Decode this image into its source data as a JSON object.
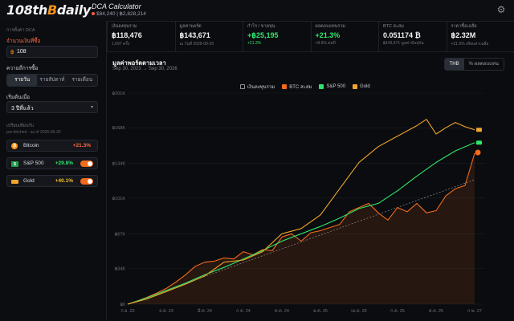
{
  "header": {
    "logo_pre": "108th",
    "logo_b": "B",
    "logo_post": "daily",
    "app_title": "DCA Calculator",
    "price_text": "$84,240 | ฿2,828,214"
  },
  "stats": [
    {
      "label": "เงินลงทุนรวม",
      "value": "฿118,476",
      "sub": "1,097 ครั้ง",
      "green": false
    },
    {
      "label": "มูลค่าพอร์ต",
      "value": "฿143,671",
      "sub": "ณ วันที่ 2026-09-29",
      "green": false
    },
    {
      "label": "กำไร / ขาดทุน",
      "value": "+฿25,195",
      "sub": "+21.3%",
      "green": true
    },
    {
      "label": "ผลตอบแทนรวม",
      "value": "+21.3%",
      "sub": "+8.6% ต่อปี",
      "green": true
    },
    {
      "label": "BTC สะสม",
      "value": "0.051174 ₿",
      "sub": "฿143,671 มูลค่าปัจจุบัน",
      "green": false
    },
    {
      "label": "ราคาซื้อเฉลี่ย",
      "value": "฿2.32M",
      "sub": "+21.5% เทียบค่าเฉลี่ย",
      "green": false
    }
  ],
  "sidebar": {
    "section_title": "การตั้งค่า DCA",
    "amount_label": "จำนวนเงินที่ซื้อ",
    "amount_currency": "฿",
    "amount_value": "108",
    "frequency_label": "ความถี่การซื้อ",
    "frequency_options": [
      "รายวัน",
      "รายสัปดาห์",
      "รายเดือน"
    ],
    "start_label": "เริ่มต้นเมื่อ",
    "start_value": "3 ปีที่แล้ว",
    "compare_title": "เปรียบเทียบกับ",
    "compare_note": "pre-fetched · as of 2026-09-30",
    "assets": [
      {
        "name": "Bitcoin",
        "pct": "+21.3%",
        "color": "#f7931a",
        "icon": "bitcoin-icon",
        "glyph": "₿",
        "toggle": false
      },
      {
        "name": "S&P 500",
        "pct": "+29.8%",
        "color": "#2ee66b",
        "icon": "dollar-icon",
        "glyph": "$",
        "toggle": true
      },
      {
        "name": "Gold",
        "pct": "+40.1%",
        "color": "#f0a52a",
        "icon": "gold-bar-icon",
        "glyph": "",
        "toggle": true
      }
    ]
  },
  "chart_panel": {
    "title": "มูลค่าพอร์ตตามเวลา",
    "subtitle": "Sep 30, 2023 → Sep 30, 2026",
    "currency_options": [
      "THB",
      "% ผลตอบแทน"
    ],
    "legend": [
      {
        "label": "เงินลงทุนรวม",
        "color": "#8a8f99",
        "icon": "invested-legend-icon"
      },
      {
        "label": "BTC สะสม",
        "color": "#f26a1b",
        "icon": "btc-legend-icon"
      },
      {
        "label": "S&P 500",
        "color": "#2ee66b",
        "icon": "sp500-legend-icon"
      },
      {
        "label": "Gold",
        "color": "#f0a52a",
        "icon": "gold-legend-icon"
      }
    ]
  },
  "chart_data": {
    "type": "line",
    "ylabel": "",
    "ylim": [
      0,
      201000
    ],
    "yticks": [
      0,
      34000,
      67000,
      101000,
      134000,
      168000,
      201000
    ],
    "ytick_labels": [
      "฿0",
      "฿34K",
      "฿67K",
      "฿101K",
      "฿134K",
      "฿168K",
      "฿201K"
    ],
    "xlim": [
      0,
      37
    ],
    "xticks": [
      0,
      4,
      8,
      12,
      16,
      20,
      24,
      28,
      32,
      36
    ],
    "xtick_labels": [
      "ก.ย. 23",
      "ธ.ค. 23",
      "มี.ค. 24",
      "ก.ค. 24",
      "ต.ค. 24",
      "ม.ค. 25",
      "เม.ย. 25",
      "ก.ค. 25",
      "ต.ค. 25",
      "ก.พ. 27"
    ],
    "grid": true,
    "series": [
      {
        "name": "เงินลงทุนรวม",
        "color": "#8a8f99",
        "dashed": true,
        "x": [
          0,
          36
        ],
        "y": [
          0,
          118476
        ]
      },
      {
        "name": "BTC สะสม",
        "color": "#f26a1b",
        "fill": true,
        "x": [
          0,
          1,
          2,
          3,
          4,
          5,
          6,
          7,
          8,
          9,
          10,
          11,
          12,
          13,
          14,
          15,
          16,
          17,
          18,
          19,
          20,
          21,
          22,
          23,
          24,
          25,
          26,
          27,
          28,
          29,
          30,
          31,
          32,
          33,
          34,
          35,
          36
        ],
        "y": [
          0,
          3000,
          6500,
          10500,
          15000,
          21000,
          28000,
          36000,
          40000,
          41000,
          44000,
          43000,
          50000,
          47000,
          52000,
          51000,
          64000,
          67000,
          60000,
          68000,
          70000,
          73000,
          76000,
          88000,
          92000,
          96000,
          87000,
          80000,
          92000,
          88000,
          96000,
          87000,
          89000,
          103000,
          110000,
          113000,
          143671
        ]
      },
      {
        "name": "S&P 500",
        "color": "#2ee66b",
        "x": [
          0,
          2,
          4,
          6,
          8,
          10,
          12,
          14,
          16,
          18,
          20,
          22,
          24,
          26,
          28,
          30,
          32,
          34,
          36
        ],
        "y": [
          0,
          6000,
          13000,
          20000,
          28000,
          35000,
          43000,
          51000,
          60000,
          67000,
          74000,
          82000,
          91000,
          96000,
          108000,
          122000,
          135000,
          146000,
          153800
        ]
      },
      {
        "name": "Gold",
        "color": "#f0a52a",
        "x": [
          0,
          2,
          4,
          6,
          8,
          10,
          12,
          14,
          16,
          18,
          20,
          22,
          24,
          26,
          28,
          30,
          31,
          32,
          33,
          34,
          35,
          36
        ],
        "y": [
          0,
          5000,
          12000,
          19000,
          27000,
          40000,
          42000,
          50000,
          67000,
          72000,
          85000,
          110000,
          135000,
          150000,
          160000,
          170000,
          176000,
          162000,
          168000,
          173000,
          169000,
          166000
        ]
      }
    ],
    "end_markers": [
      "Gold",
      "S&P 500",
      "BTC สะสม"
    ]
  }
}
